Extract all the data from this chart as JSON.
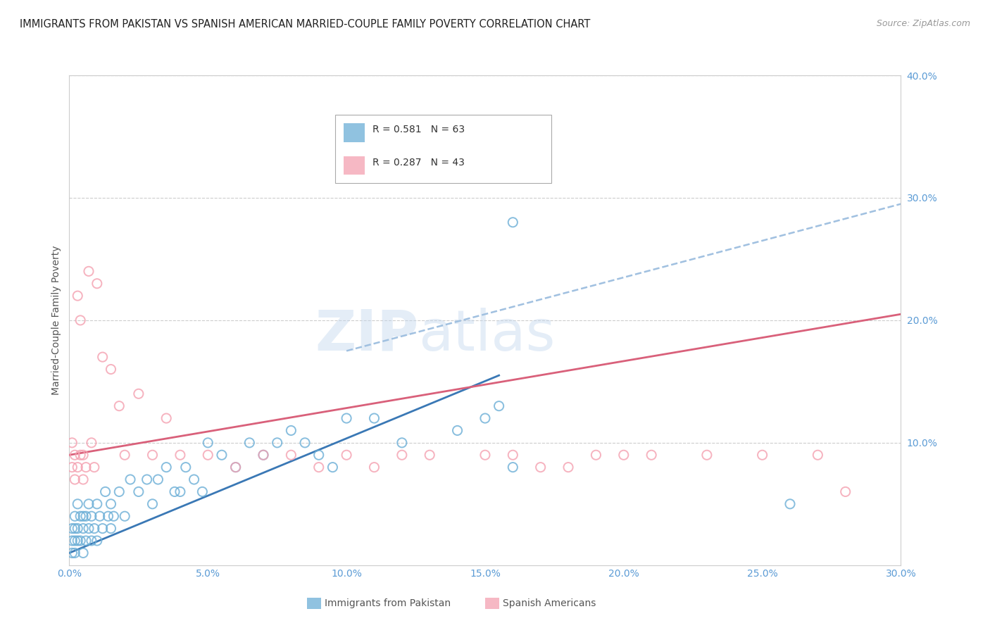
{
  "title": "IMMIGRANTS FROM PAKISTAN VS SPANISH AMERICAN MARRIED-COUPLE FAMILY POVERTY CORRELATION CHART",
  "source": "Source: ZipAtlas.com",
  "xlabel_blue": "Immigrants from Pakistan",
  "xlabel_pink": "Spanish Americans",
  "ylabel": "Married-Couple Family Poverty",
  "xlim": [
    0.0,
    0.3
  ],
  "ylim": [
    0.0,
    0.4
  ],
  "xticks": [
    0.0,
    0.05,
    0.1,
    0.15,
    0.2,
    0.25,
    0.3
  ],
  "yticks": [
    0.1,
    0.2,
    0.3,
    0.4
  ],
  "blue_R": 0.581,
  "blue_N": 63,
  "pink_R": 0.287,
  "pink_N": 43,
  "blue_color": "#6baed6",
  "pink_color": "#f4a0b0",
  "blue_line_color": "#3a78b5",
  "pink_line_color": "#d9607a",
  "dashed_line_color": "#a0c0e0",
  "tick_label_color": "#5b9bd5",
  "background_color": "#ffffff",
  "grid_color": "#cccccc",
  "watermark_zip": "ZIP",
  "watermark_atlas": "atlas",
  "blue_scatter_x": [
    0.001,
    0.001,
    0.001,
    0.002,
    0.002,
    0.002,
    0.002,
    0.003,
    0.003,
    0.003,
    0.004,
    0.004,
    0.005,
    0.005,
    0.005,
    0.006,
    0.006,
    0.007,
    0.007,
    0.008,
    0.008,
    0.009,
    0.01,
    0.01,
    0.011,
    0.012,
    0.013,
    0.014,
    0.015,
    0.015,
    0.016,
    0.018,
    0.02,
    0.022,
    0.025,
    0.028,
    0.03,
    0.032,
    0.035,
    0.038,
    0.04,
    0.042,
    0.045,
    0.048,
    0.05,
    0.055,
    0.06,
    0.065,
    0.07,
    0.075,
    0.08,
    0.085,
    0.09,
    0.095,
    0.1,
    0.11,
    0.12,
    0.14,
    0.15,
    0.155,
    0.16,
    0.26,
    0.16
  ],
  "blue_scatter_y": [
    0.01,
    0.02,
    0.03,
    0.01,
    0.02,
    0.03,
    0.04,
    0.02,
    0.03,
    0.05,
    0.02,
    0.04,
    0.01,
    0.03,
    0.04,
    0.02,
    0.04,
    0.03,
    0.05,
    0.02,
    0.04,
    0.03,
    0.02,
    0.05,
    0.04,
    0.03,
    0.06,
    0.04,
    0.03,
    0.05,
    0.04,
    0.06,
    0.04,
    0.07,
    0.06,
    0.07,
    0.05,
    0.07,
    0.08,
    0.06,
    0.06,
    0.08,
    0.07,
    0.06,
    0.1,
    0.09,
    0.08,
    0.1,
    0.09,
    0.1,
    0.11,
    0.1,
    0.09,
    0.08,
    0.12,
    0.12,
    0.1,
    0.11,
    0.12,
    0.13,
    0.08,
    0.05,
    0.28
  ],
  "pink_scatter_x": [
    0.001,
    0.001,
    0.002,
    0.002,
    0.003,
    0.003,
    0.004,
    0.004,
    0.005,
    0.005,
    0.006,
    0.007,
    0.008,
    0.009,
    0.01,
    0.012,
    0.015,
    0.018,
    0.02,
    0.025,
    0.03,
    0.035,
    0.04,
    0.05,
    0.06,
    0.07,
    0.08,
    0.09,
    0.1,
    0.11,
    0.12,
    0.13,
    0.15,
    0.16,
    0.17,
    0.18,
    0.19,
    0.2,
    0.21,
    0.23,
    0.25,
    0.27,
    0.28
  ],
  "pink_scatter_y": [
    0.08,
    0.1,
    0.07,
    0.09,
    0.08,
    0.22,
    0.09,
    0.2,
    0.07,
    0.09,
    0.08,
    0.24,
    0.1,
    0.08,
    0.23,
    0.17,
    0.16,
    0.13,
    0.09,
    0.14,
    0.09,
    0.12,
    0.09,
    0.09,
    0.08,
    0.09,
    0.09,
    0.08,
    0.09,
    0.08,
    0.09,
    0.09,
    0.09,
    0.09,
    0.08,
    0.08,
    0.09,
    0.09,
    0.09,
    0.09,
    0.09,
    0.09,
    0.06
  ],
  "blue_line_x": [
    0.0,
    0.155
  ],
  "blue_line_y": [
    0.01,
    0.155
  ],
  "pink_line_x": [
    0.0,
    0.3
  ],
  "pink_line_y": [
    0.09,
    0.205
  ],
  "dashed_line_x": [
    0.1,
    0.3
  ],
  "dashed_line_y": [
    0.175,
    0.295
  ]
}
